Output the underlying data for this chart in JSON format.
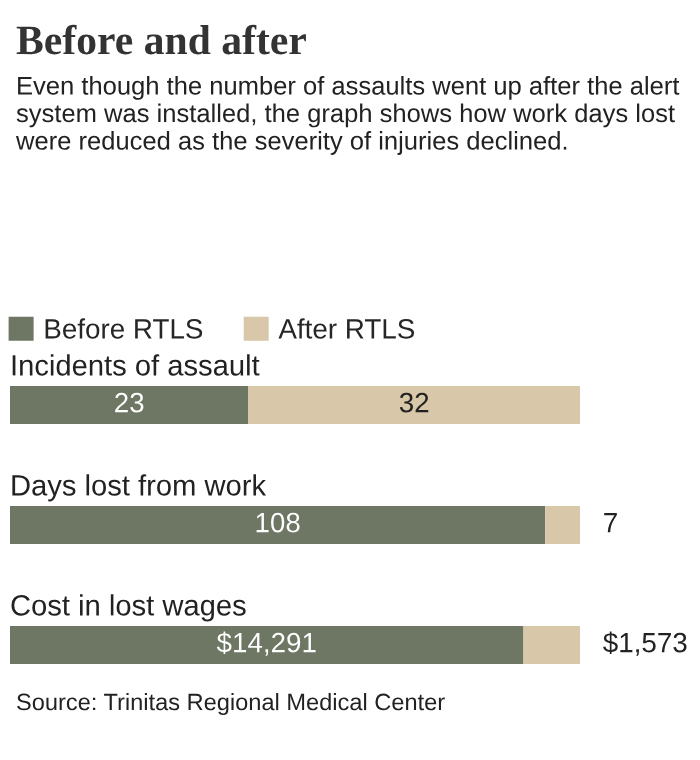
{
  "chart_data": [
    {
      "type": "bar",
      "orientation": "horizontal",
      "stacked": true,
      "title": "Before and after",
      "subtitle": "Even though the number of assaults went up after the alert system was installed, the graph shows how work days lost were reduced as the severity of injuries declined.",
      "categories": [
        "Incidents of assault"
      ],
      "legend": "top left",
      "data_labels": true,
      "series": [
        {
          "name": "Before RTLS",
          "color": "#6e7763",
          "values": [
            23
          ]
        },
        {
          "name": "After RTLS",
          "color": "#d8c7a8",
          "values": [
            32
          ]
        }
      ]
    },
    {
      "type": "bar",
      "orientation": "horizontal",
      "stacked": true,
      "categories": [
        "Days lost from work"
      ],
      "data_labels": true,
      "series": [
        {
          "color": "#6e7763",
          "values": [
            108
          ]
        },
        {
          "color": "#d8c7a8",
          "values": [
            7
          ]
        }
      ]
    },
    {
      "type": "bar",
      "orientation": "horizontal",
      "stacked": true,
      "categories": [
        "Cost in lost wages"
      ],
      "annotations": [
        "Source: Trinitas Regional Medical Center"
      ],
      "series": [
        {
          "color": "#6e7763",
          "values": [
            14291
          ],
          "value_labels": [
            "$14,291"
          ]
        },
        {
          "color": "#d8c7a8",
          "values": [
            1573
          ],
          "value_labels": [
            "$1,573"
          ]
        }
      ]
    }
  ]
}
